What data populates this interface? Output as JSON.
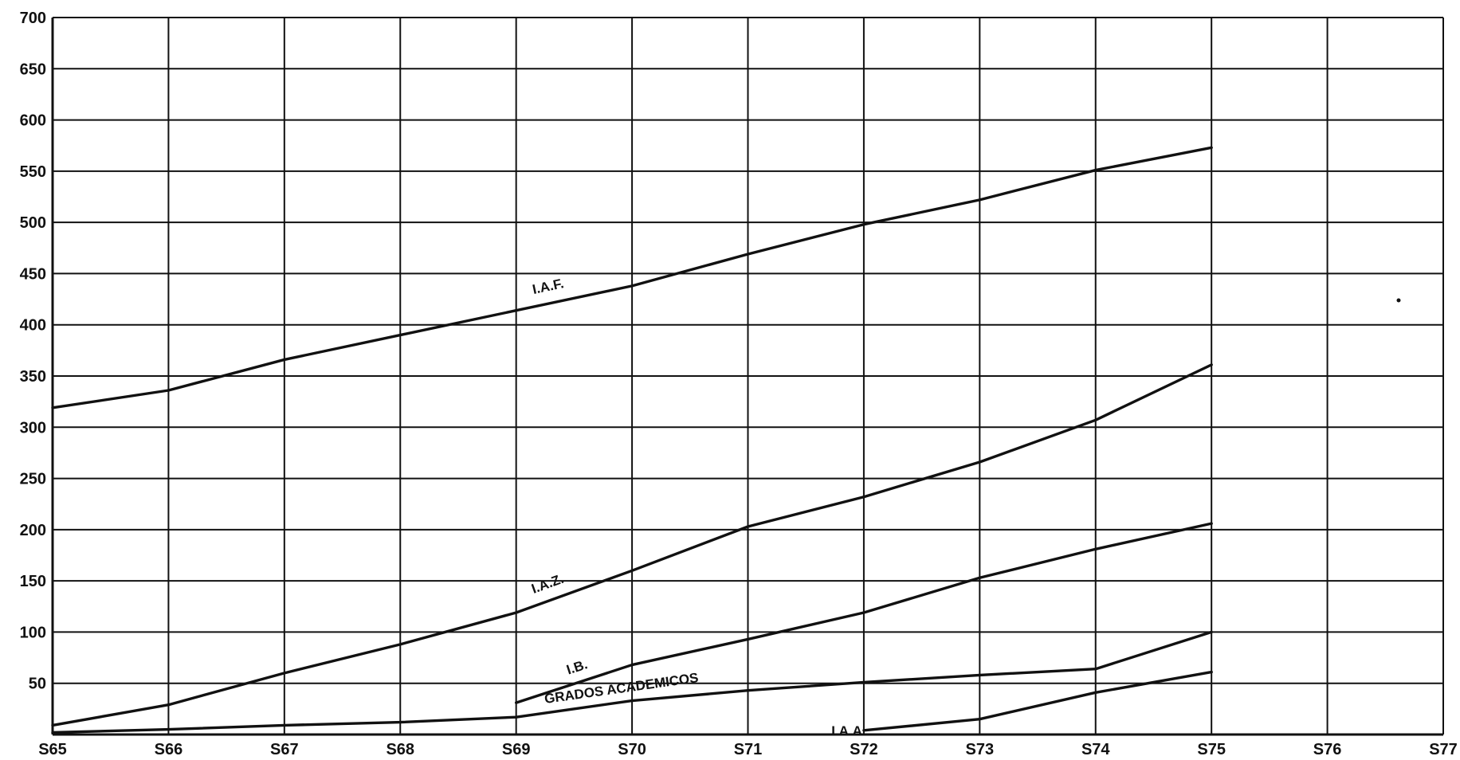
{
  "chart_data": {
    "type": "line",
    "x_categories": [
      "S65",
      "S66",
      "S67",
      "S68",
      "S69",
      "S70",
      "S71",
      "S72",
      "S73",
      "S74",
      "S75",
      "S76",
      "S77"
    ],
    "y_ticks": [
      50,
      100,
      150,
      200,
      250,
      300,
      350,
      400,
      450,
      500,
      550,
      600,
      650,
      700
    ],
    "ylim": [
      0,
      700
    ],
    "grid": true,
    "series": [
      {
        "name": "I.A.F.",
        "x": [
          0,
          1,
          2,
          3,
          4,
          5,
          6,
          7,
          8,
          9,
          10
        ],
        "values": [
          319,
          336,
          366,
          390,
          414,
          438,
          469,
          498,
          522,
          551,
          573
        ]
      },
      {
        "name": "I.A.Z.",
        "x": [
          0,
          1,
          2,
          3,
          4,
          5,
          6,
          7,
          8,
          9,
          10
        ],
        "values": [
          9,
          29,
          60,
          88,
          119,
          160,
          203,
          232,
          266,
          307,
          361
        ]
      },
      {
        "name": "I.B.",
        "x": [
          4,
          5,
          6,
          7,
          8,
          9,
          10
        ],
        "values": [
          31,
          68,
          93,
          119,
          153,
          181,
          206
        ]
      },
      {
        "name": "GRADOS ACADEMICOS",
        "x": [
          0,
          1,
          2,
          3,
          4,
          5,
          6,
          7,
          8,
          9,
          10
        ],
        "values": [
          2,
          5,
          9,
          12,
          17,
          33,
          43,
          51,
          58,
          64,
          100
        ]
      },
      {
        "name": "I.A.A.",
        "x": [
          7,
          8,
          9,
          10
        ],
        "values": [
          4,
          15,
          41,
          61
        ]
      }
    ]
  }
}
